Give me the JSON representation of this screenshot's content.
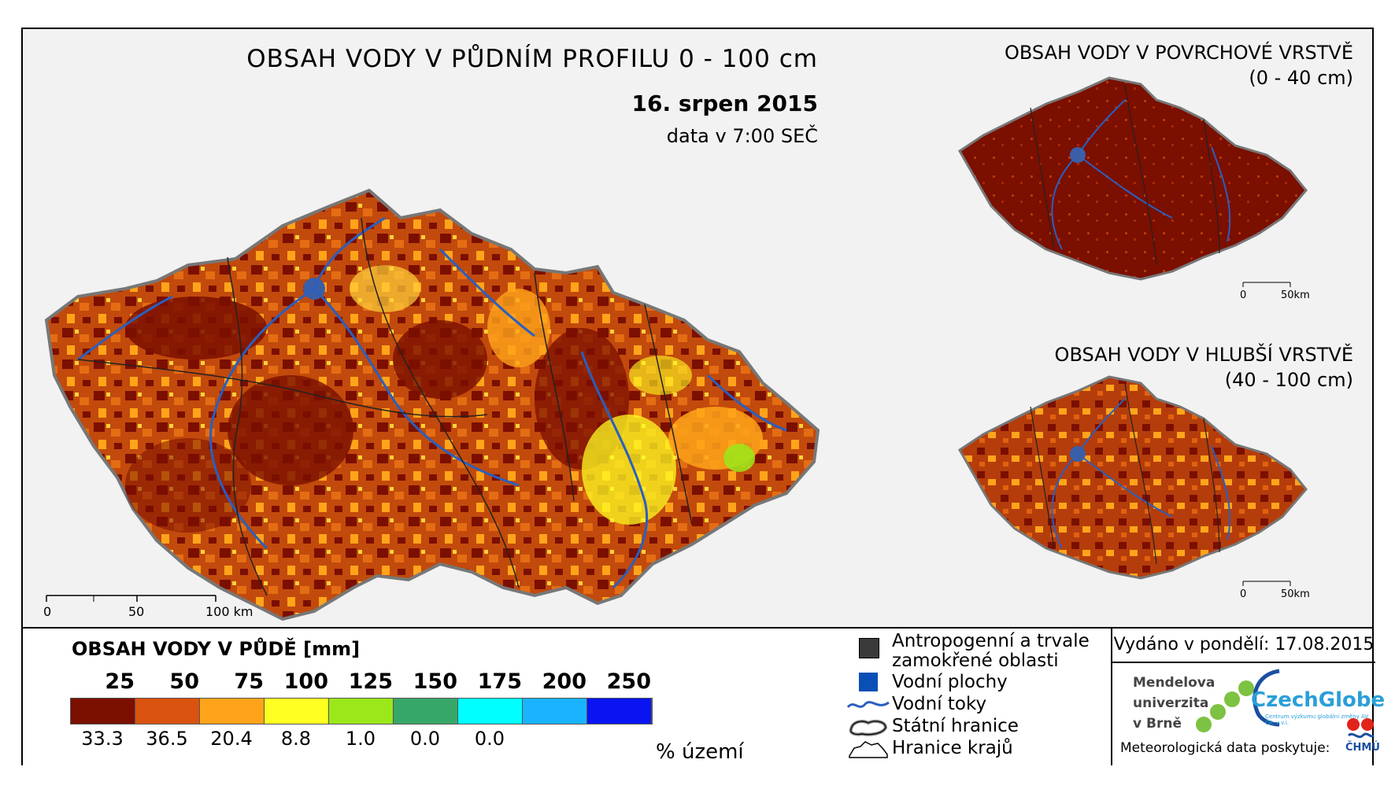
{
  "main": {
    "title": "OBSAH VODY V PŮDNÍM PROFILU 0 - 100 cm",
    "date": "16. srpen 2015",
    "time": "data v 7:00 SEČ",
    "scale": {
      "t0": "0",
      "t1": "50",
      "t2": "100 km"
    }
  },
  "inset_top": {
    "title1": "OBSAH VODY V POVRCHOVÉ VRSTVĚ",
    "title2": "(0 - 40 cm)",
    "scale": {
      "t0": "0",
      "t1": "50km"
    }
  },
  "inset_bottom": {
    "title1": "OBSAH VODY V HLUBŠÍ VRSTVĚ",
    "title2": "(40 - 100 cm)",
    "scale": {
      "t0": "0",
      "t1": "50km"
    }
  },
  "legend": {
    "title": "OBSAH VODY V PŮDĚ [mm]",
    "breaks": [
      "25",
      "50",
      "75",
      "100",
      "125",
      "150",
      "175",
      "200",
      "250"
    ],
    "colors": [
      "#7b0f00",
      "#d9520f",
      "#ffa41a",
      "#ffff22",
      "#9be71a",
      "#37a769",
      "#00ffff",
      "#1ab3ff",
      "#0a14f2"
    ],
    "percents": [
      "33.3",
      "36.5",
      "20.4",
      "8.8",
      "1.0",
      "0.0",
      "0.0"
    ],
    "percent_unit": "% území"
  },
  "symbols": {
    "anthro1": "Antropogenní a trvale",
    "anthro2": "zamokřené oblasti",
    "water_bodies": "Vodní plochy",
    "rivers": "Vodní toky",
    "state_border": "Státní hranice",
    "region_border": "Hranice krajů",
    "colors": {
      "anthro": "#3a3a3a",
      "water": "#0a4fb5",
      "river": "#2a5fbf"
    }
  },
  "footer": {
    "issued": "Vydáno v pondělí: 17.08.2015",
    "mendel": [
      "Mendelova",
      "univerzita",
      "v Brně"
    ],
    "czechglobe": "CzechGlobe",
    "czechglobe_sub": "Centrum výzkumu globální změny AV ČR, v.v.i.",
    "meteo": "Meteorologická data poskytuje:",
    "chmu": "ČHMÚ"
  }
}
